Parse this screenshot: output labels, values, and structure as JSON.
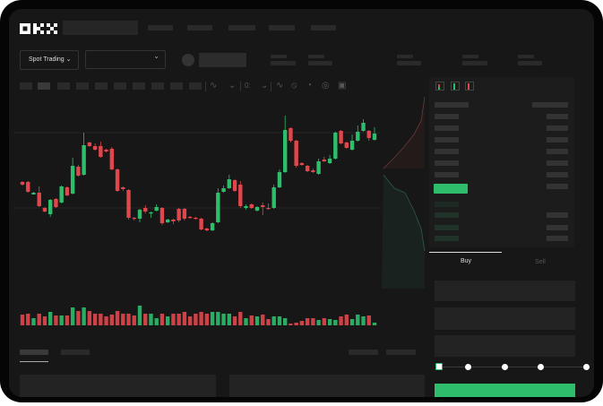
{
  "brand": {
    "logo": "OKX"
  },
  "header": {
    "mode_select": "Spot Trading",
    "chevron": "chevron-down-icon"
  },
  "order_form": {
    "tabs": [
      "Buy",
      "Sell"
    ],
    "active_tab": "Buy",
    "slider_level": 0,
    "slider_stops": 5
  },
  "colors": {
    "up": "#2dbd6b",
    "down": "#e0474c",
    "background": "#171717"
  },
  "orderbook": {
    "view_icons": [
      "orderbook-both-icon",
      "orderbook-bids-icon",
      "orderbook-asks-icon"
    ]
  },
  "toolbar_icons": [
    "indicator-icon",
    "chart-type-icon",
    "fx-icon",
    "line-icon",
    "draw-icon",
    "snapshot-icon",
    "settings-icon",
    "fullscreen-icon"
  ],
  "chart_data": {
    "type": "candlestick",
    "grid": true,
    "candles_ochl_note": "[open, close, high, low]",
    "candles": [
      [
        97,
        94,
        98,
        93
      ],
      [
        97,
        86,
        98,
        85
      ],
      [
        83,
        85,
        86,
        83
      ],
      [
        85,
        70,
        92,
        69
      ],
      [
        68,
        64,
        69,
        63
      ],
      [
        61,
        77,
        78,
        58
      ],
      [
        78,
        69,
        79,
        68
      ],
      [
        74,
        92,
        93,
        73
      ],
      [
        91,
        82,
        92,
        81
      ],
      [
        84,
        115,
        124,
        83
      ],
      [
        114,
        104,
        116,
        103
      ],
      [
        105,
        138,
        152,
        104
      ],
      [
        141,
        137,
        142,
        136
      ],
      [
        137,
        133,
        140,
        132
      ],
      [
        137,
        125,
        142,
        124
      ],
      [
        133,
        131,
        134,
        130
      ],
      [
        134,
        111,
        136,
        110
      ],
      [
        111,
        87,
        112,
        86
      ],
      [
        91,
        89,
        92,
        87
      ],
      [
        88,
        57,
        89,
        55
      ],
      [
        57,
        56,
        58,
        54
      ],
      [
        56,
        66,
        67,
        52
      ],
      [
        68,
        64,
        71,
        62
      ],
      [
        62,
        63,
        64,
        57
      ],
      [
        65,
        69,
        72,
        64
      ],
      [
        68,
        51,
        69,
        49
      ],
      [
        52,
        55,
        56,
        51
      ],
      [
        55,
        53,
        56,
        50
      ],
      [
        67,
        54,
        68,
        52
      ],
      [
        67,
        56,
        68,
        54
      ],
      [
        58,
        57,
        59,
        56
      ],
      [
        57,
        56,
        58,
        55
      ],
      [
        56,
        44,
        57,
        43
      ],
      [
        45,
        43,
        46,
        42
      ],
      [
        43,
        51,
        52,
        42
      ],
      [
        52,
        85,
        90,
        51
      ],
      [
        86,
        90,
        93,
        85
      ],
      [
        90,
        100,
        105,
        89
      ],
      [
        99,
        87,
        100,
        86
      ],
      [
        94,
        70,
        98,
        68
      ],
      [
        68,
        70,
        72,
        66
      ],
      [
        72,
        68,
        73,
        67
      ],
      [
        65,
        69,
        70,
        64
      ],
      [
        71,
        69,
        74,
        60
      ],
      [
        68,
        67,
        73,
        66
      ],
      [
        68,
        91,
        94,
        67
      ],
      [
        91,
        108,
        111,
        90
      ],
      [
        108,
        155,
        171,
        107
      ],
      [
        157,
        143,
        158,
        141
      ],
      [
        143,
        115,
        144,
        113
      ],
      [
        118,
        116,
        119,
        115
      ],
      [
        115,
        109,
        116,
        108
      ],
      [
        110,
        108,
        112,
        107
      ],
      [
        106,
        120,
        123,
        105
      ],
      [
        122,
        120,
        125,
        119
      ],
      [
        118,
        123,
        127,
        117
      ],
      [
        123,
        152,
        153,
        122
      ],
      [
        154,
        140,
        155,
        139
      ],
      [
        141,
        135,
        142,
        134
      ],
      [
        133,
        143,
        150,
        132
      ],
      [
        143,
        153,
        160,
        142
      ],
      [
        154,
        163,
        167,
        153
      ],
      [
        154,
        146,
        155,
        143
      ],
      [
        144,
        151,
        158,
        143
      ]
    ],
    "volumes": [
      12,
      13,
      8,
      13,
      10,
      15,
      11,
      11,
      11,
      20,
      16,
      20,
      16,
      13,
      13,
      10,
      12,
      16,
      13,
      13,
      11,
      22,
      13,
      13,
      8,
      13,
      10,
      13,
      13,
      15,
      10,
      13,
      15,
      13,
      15,
      15,
      13,
      13,
      10,
      15,
      8,
      11,
      10,
      12,
      7,
      10,
      10,
      8,
      2,
      3,
      5,
      8,
      8,
      6,
      8,
      7,
      6,
      10,
      12,
      7,
      12,
      10,
      11,
      3
    ]
  }
}
